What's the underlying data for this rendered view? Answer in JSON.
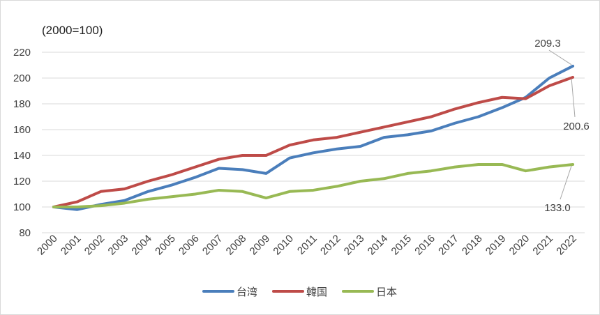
{
  "chart_data": {
    "type": "line",
    "unit_label": "(2000=100)",
    "x": [
      "2000",
      "2001",
      "2002",
      "2003",
      "2004",
      "2005",
      "2006",
      "2007",
      "2008",
      "2009",
      "2010",
      "2011",
      "2012",
      "2013",
      "2014",
      "2015",
      "2016",
      "2017",
      "2018",
      "2019",
      "2020",
      "2021",
      "2022"
    ],
    "ylim": [
      80,
      220
    ],
    "yticks": [
      80,
      100,
      120,
      140,
      160,
      180,
      200,
      220
    ],
    "grid": true,
    "legend_position": "bottom",
    "series": [
      {
        "name": "台湾",
        "color": "#4A7EBB",
        "values": [
          100,
          98,
          102,
          105,
          112,
          117,
          123,
          130,
          129,
          126,
          138,
          142,
          145,
          147,
          154,
          156,
          159,
          165,
          170,
          177,
          185,
          200,
          209.3
        ],
        "end_label": "209.3"
      },
      {
        "name": "韓国",
        "color": "#BE4B48",
        "values": [
          100,
          104,
          112,
          114,
          120,
          125,
          131,
          137,
          140,
          140,
          148,
          152,
          154,
          158,
          162,
          166,
          170,
          176,
          181,
          185,
          184,
          194,
          200.6
        ],
        "end_label": "200.6"
      },
      {
        "name": "日本",
        "color": "#98B954",
        "values": [
          100,
          100,
          101,
          103,
          106,
          108,
          110,
          113,
          112,
          107,
          112,
          113,
          116,
          120,
          122,
          126,
          128,
          131,
          133,
          133,
          128,
          131,
          133.0
        ],
        "end_label": "133.0"
      }
    ]
  }
}
